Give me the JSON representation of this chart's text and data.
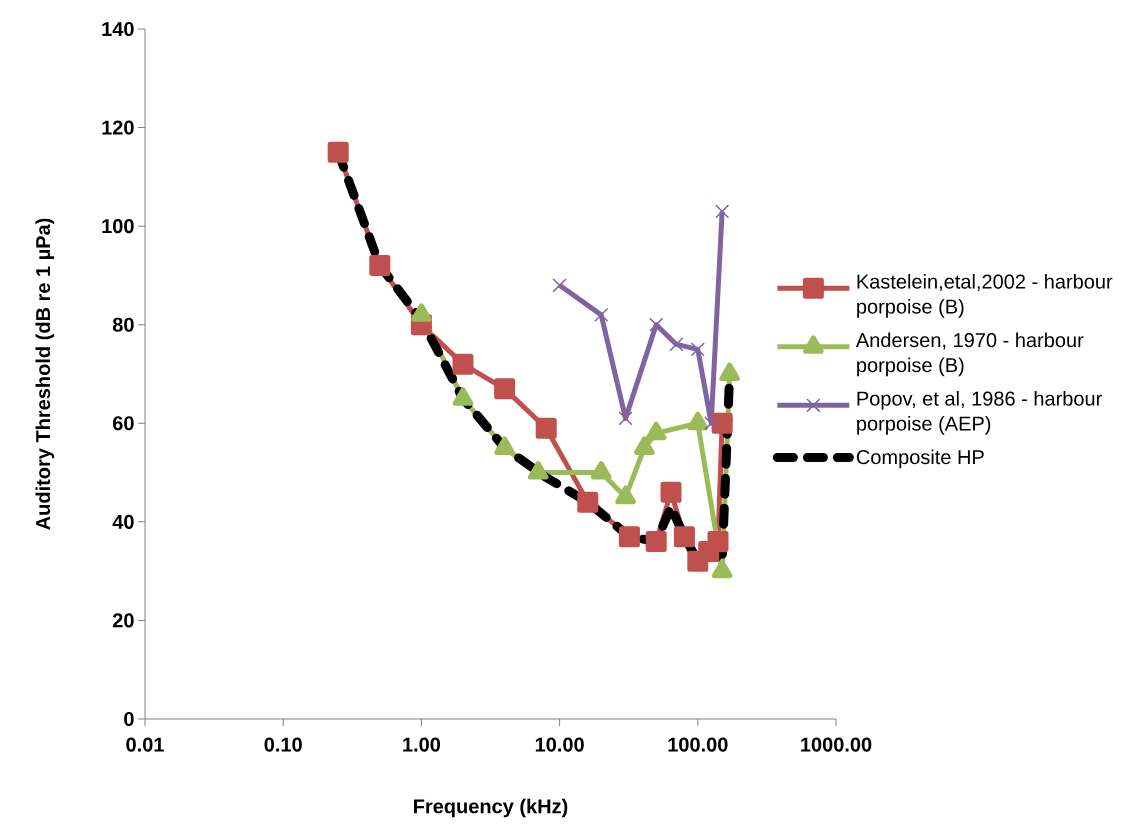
{
  "chart_data": {
    "type": "line",
    "xlabel": "Frequency (kHz)",
    "ylabel": "Auditory Threshold (dB re 1 µPa)",
    "log": "x",
    "legend": "right",
    "xlim": [
      0.01,
      1000
    ],
    "ylim": [
      0,
      140
    ],
    "xticks": [
      {
        "value": 0.01,
        "label": "0.01"
      },
      {
        "value": 0.1,
        "label": "0.10"
      },
      {
        "value": 1,
        "label": "1.00"
      },
      {
        "value": 10,
        "label": "10.00"
      },
      {
        "value": 100,
        "label": "100.00"
      },
      {
        "value": 1000,
        "label": "1000.00"
      }
    ],
    "yticks": [
      0,
      20,
      40,
      60,
      80,
      100,
      120,
      140
    ],
    "series": [
      {
        "name": "Kastelein,etal,2002 - harbour porpoise (B)",
        "color": "#c0504d",
        "marker": "square",
        "line_style": "solid",
        "x": [
          0.25,
          0.5,
          1,
          2,
          4,
          8,
          16,
          32,
          50,
          64,
          80,
          100,
          120,
          140,
          150
        ],
        "values": [
          115,
          92,
          80,
          72,
          67,
          59,
          44,
          37,
          36,
          46,
          37,
          32,
          34,
          36,
          60
        ]
      },
      {
        "name": "Andersen, 1970 - harbour porpoise (B)",
        "color": "#9bbb59",
        "marker": "triangle",
        "line_style": "solid",
        "x": [
          1,
          2,
          4,
          7,
          20,
          30,
          41,
          50,
          100,
          150,
          170
        ],
        "values": [
          82,
          65,
          55,
          50,
          50,
          45,
          55,
          58,
          60,
          30,
          70
        ]
      },
      {
        "name": "Popov, et al, 1986 - harbour porpoise (AEP)",
        "color": "#8064a2",
        "marker": "cross",
        "line_style": "solid",
        "x": [
          10,
          20,
          30,
          50,
          70,
          100,
          125,
          150
        ],
        "values": [
          88,
          82,
          61,
          80,
          76,
          75,
          60,
          103
        ]
      },
      {
        "name": "Composite HP",
        "color": "#000000",
        "marker": "none",
        "line_style": "dashed",
        "x": [
          0.25,
          0.5,
          1,
          2,
          4,
          8,
          16,
          32,
          50,
          64,
          80,
          100,
          120,
          150,
          170
        ],
        "values": [
          115,
          92,
          81,
          65,
          55,
          49,
          44,
          37,
          36,
          43,
          37,
          32,
          34,
          32,
          70
        ]
      }
    ]
  }
}
